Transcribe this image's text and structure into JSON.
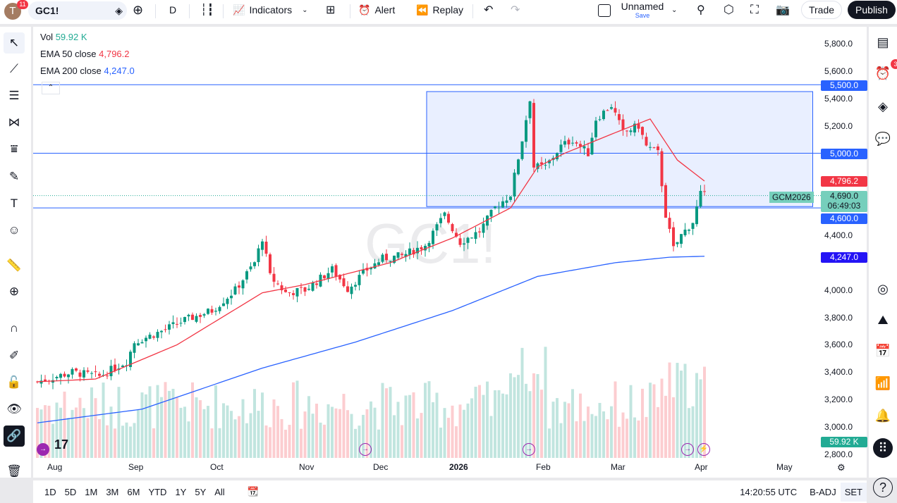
{
  "toolbar": {
    "avatar": "T",
    "avatar_badge": "11",
    "symbol": "GC1!",
    "interval": "D",
    "indicators": "Indicators",
    "alert": "Alert",
    "replay": "Replay",
    "layout_name": "Unnamed",
    "layout_save": "Save",
    "trade": "Trade",
    "publish": "Publish"
  },
  "legend": {
    "vol_label": "Vol",
    "vol_value": "59.92 K",
    "ema50_label": "EMA 50 close",
    "ema50_value": "4,796.2",
    "ema200_label": "EMA 200 close",
    "ema200_value": "4,247.0"
  },
  "watermark": "GC1!",
  "price_axis": [
    "5,800.0",
    "5,600.0",
    "5,400.0",
    "5,200.0",
    "4,400.0",
    "4,000.0",
    "3,800.0",
    "3,600.0",
    "3,400.0",
    "3,200.0",
    "3,000.0",
    "2,800.0"
  ],
  "price_labels": {
    "level_5500": "5,500.0",
    "level_5000": "5,000.0",
    "ema50": "4,796.2",
    "last": "4,690.0",
    "countdown": "06:49:03",
    "level_4600": "4,600.0",
    "ema200": "4,247.0",
    "vol": "59.92 K",
    "symbol_tag": "GCM2026"
  },
  "time_axis": [
    "Aug",
    "Sep",
    "Oct",
    "Nov",
    "Dec",
    "2026",
    "Feb",
    "Mar",
    "Apr",
    "May"
  ],
  "bottom": {
    "ranges": [
      "1D",
      "5D",
      "1M",
      "3M",
      "6M",
      "YTD",
      "1Y",
      "5Y",
      "All"
    ],
    "clock": "14:20:55 UTC",
    "badj": "B-ADJ",
    "session": "SET"
  },
  "right_badge": "3",
  "colors": {
    "up": "#089981",
    "down": "#f23645",
    "ema50": "#f23645",
    "ema200": "#2962ff",
    "accent": "#2962ff"
  },
  "chart_data": {
    "type": "candlestick",
    "symbol": "GC1!",
    "interval": "D",
    "close_anchors": [
      [
        0,
        3330
      ],
      [
        9,
        3400
      ],
      [
        16,
        3370
      ],
      [
        23,
        3480
      ],
      [
        25,
        3620
      ],
      [
        32,
        3700
      ],
      [
        38,
        3780
      ],
      [
        45,
        3850
      ],
      [
        51,
        4000
      ],
      [
        56,
        4200
      ],
      [
        58,
        4380
      ],
      [
        60,
        4100
      ],
      [
        64,
        3980
      ],
      [
        69,
        4000
      ],
      [
        76,
        4150
      ],
      [
        80,
        4010
      ],
      [
        85,
        4150
      ],
      [
        89,
        4230
      ],
      [
        94,
        4250
      ],
      [
        100,
        4330
      ],
      [
        105,
        4550
      ],
      [
        109,
        4350
      ],
      [
        114,
        4430
      ],
      [
        118,
        4600
      ],
      [
        122,
        4700
      ],
      [
        125,
        5100
      ],
      [
        127,
        5400
      ],
      [
        128,
        4900
      ],
      [
        131,
        4900
      ],
      [
        135,
        5050
      ],
      [
        138,
        5100
      ],
      [
        142,
        5000
      ],
      [
        144,
        5250
      ],
      [
        148,
        5350
      ],
      [
        151,
        5150
      ],
      [
        155,
        5200
      ],
      [
        157,
        5050
      ],
      [
        160,
        5000
      ],
      [
        162,
        4550
      ],
      [
        164,
        4300
      ],
      [
        166,
        4400
      ],
      [
        169,
        4500
      ],
      [
        171,
        4700
      ],
      [
        172,
        4690
      ]
    ],
    "ema50_anchors": [
      [
        0,
        3330
      ],
      [
        15,
        3350
      ],
      [
        36,
        3600
      ],
      [
        58,
        3980
      ],
      [
        69,
        4040
      ],
      [
        91,
        4200
      ],
      [
        107,
        4380
      ],
      [
        122,
        4600
      ],
      [
        129,
        4900
      ],
      [
        136,
        5000
      ],
      [
        149,
        5150
      ],
      [
        158,
        5250
      ],
      [
        165,
        4950
      ],
      [
        172,
        4796.2
      ]
    ],
    "ema200_anchors": [
      [
        0,
        3030
      ],
      [
        27,
        3130
      ],
      [
        58,
        3430
      ],
      [
        82,
        3620
      ],
      [
        107,
        3850
      ],
      [
        129,
        4100
      ],
      [
        149,
        4200
      ],
      [
        163,
        4240
      ],
      [
        172,
        4247
      ]
    ],
    "hlines": [
      5500,
      5000,
      4600
    ],
    "rect": {
      "bars": [
        102,
        201
      ],
      "prices": [
        4610,
        5450
      ]
    },
    "ylim": [
      2800,
      5800
    ]
  }
}
